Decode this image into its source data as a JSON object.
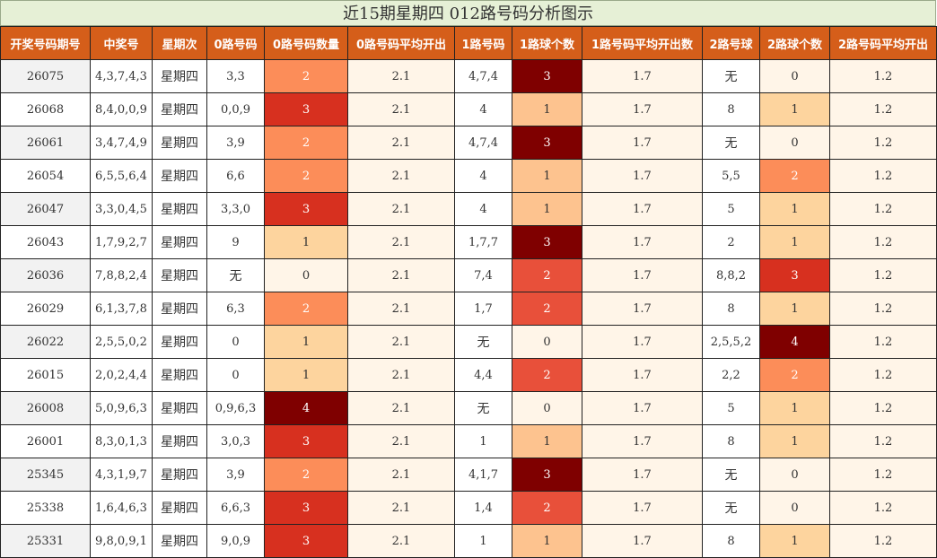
{
  "title": "近15期星期四 012路号码分析图示",
  "chart_data": {
    "type": "table",
    "title": "近15期星期四 012路号码分析图示",
    "columns": [
      "开奖号码期号",
      "中奖号",
      "星期次",
      "0路号码",
      "0路号码数量",
      "0路号码平均开出",
      "1路号码",
      "1路球个数",
      "1路号码平均开出数",
      "2路号球",
      "2路球个数",
      "2路号码平均开出"
    ],
    "rows": [
      [
        "26075",
        "4,3,7,4,3",
        "星期四",
        "3,3",
        2,
        "2.1",
        "4,7,4",
        3,
        "1.7",
        "无",
        0,
        "1.2"
      ],
      [
        "26068",
        "8,4,0,0,9",
        "星期四",
        "0,0,9",
        3,
        "2.1",
        "4",
        1,
        "1.7",
        "8",
        1,
        "1.2"
      ],
      [
        "26061",
        "3,4,7,4,9",
        "星期四",
        "3,9",
        2,
        "2.1",
        "4,7,4",
        3,
        "1.7",
        "无",
        0,
        "1.2"
      ],
      [
        "26054",
        "6,5,5,6,4",
        "星期四",
        "6,6",
        2,
        "2.1",
        "4",
        1,
        "1.7",
        "5,5",
        2,
        "1.2"
      ],
      [
        "26047",
        "3,3,0,4,5",
        "星期四",
        "3,3,0",
        3,
        "2.1",
        "4",
        1,
        "1.7",
        "5",
        1,
        "1.2"
      ],
      [
        "26043",
        "1,7,9,2,7",
        "星期四",
        "9",
        1,
        "2.1",
        "1,7,7",
        3,
        "1.7",
        "2",
        1,
        "1.2"
      ],
      [
        "26036",
        "7,8,8,2,4",
        "星期四",
        "无",
        0,
        "2.1",
        "7,4",
        2,
        "1.7",
        "8,8,2",
        3,
        "1.2"
      ],
      [
        "26029",
        "6,1,3,7,8",
        "星期四",
        "6,3",
        2,
        "2.1",
        "1,7",
        2,
        "1.7",
        "8",
        1,
        "1.2"
      ],
      [
        "26022",
        "2,5,5,0,2",
        "星期四",
        "0",
        1,
        "2.1",
        "无",
        0,
        "1.7",
        "2,5,5,2",
        4,
        "1.2"
      ],
      [
        "26015",
        "2,0,2,4,4",
        "星期四",
        "0",
        1,
        "2.1",
        "4,4",
        2,
        "1.7",
        "2,2",
        2,
        "1.2"
      ],
      [
        "26008",
        "5,0,9,6,3",
        "星期四",
        "0,9,6,3",
        4,
        "2.1",
        "无",
        0,
        "1.7",
        "5",
        1,
        "1.2"
      ],
      [
        "26001",
        "8,3,0,1,3",
        "星期四",
        "3,0,3",
        3,
        "2.1",
        "1",
        1,
        "1.7",
        "8",
        1,
        "1.2"
      ],
      [
        "25345",
        "4,3,1,9,7",
        "星期四",
        "3,9",
        2,
        "2.1",
        "4,1,7",
        3,
        "1.7",
        "无",
        0,
        "1.2"
      ],
      [
        "25338",
        "1,6,4,6,3",
        "星期四",
        "6,6,3",
        3,
        "2.1",
        "1,4",
        2,
        "1.7",
        "无",
        0,
        "1.2"
      ],
      [
        "25331",
        "9,8,0,9,1",
        "星期四",
        "9,0,9",
        3,
        "2.1",
        "1",
        1,
        "1.7",
        "8",
        1,
        "1.2"
      ]
    ]
  },
  "colors": {
    "header_bg": "#d55e1a",
    "header_text": "#ffffff",
    "title_bg": "#e6f0d6",
    "odd_col1_bg": "#f2f2f2",
    "light_bg": "#fff5e8",
    "white_bg": "#ffffff",
    "count_scale": {
      "0": "#fff5e8",
      "1": "#fdd49e",
      "2": "#fc8d59",
      "3": "#d7301f",
      "4": "#7f0000"
    },
    "count_scale_1lu": {
      "0": "#fff5e8",
      "1": "#fdc38f",
      "2": "#e8503a",
      "3": "#7f0000",
      "4": "#7f0000"
    }
  }
}
